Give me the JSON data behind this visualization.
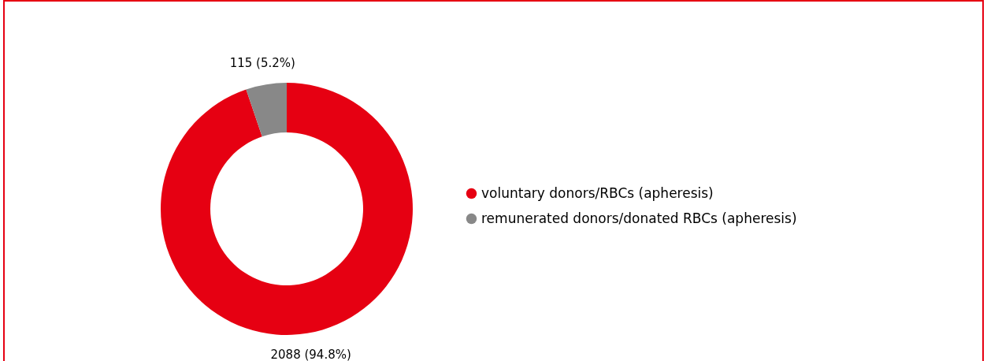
{
  "chart_data": {
    "type": "donut",
    "categories": [
      "voluntary donors/RBCs (apheresis)",
      "remunerated donors/donated RBCs (apheresis)"
    ],
    "values": [
      2088,
      115
    ],
    "colors": [
      "#e60012",
      "#888888"
    ],
    "value_labels": [
      "2088 (94.8%)",
      "115 (5.2%)"
    ],
    "legend": "right"
  }
}
